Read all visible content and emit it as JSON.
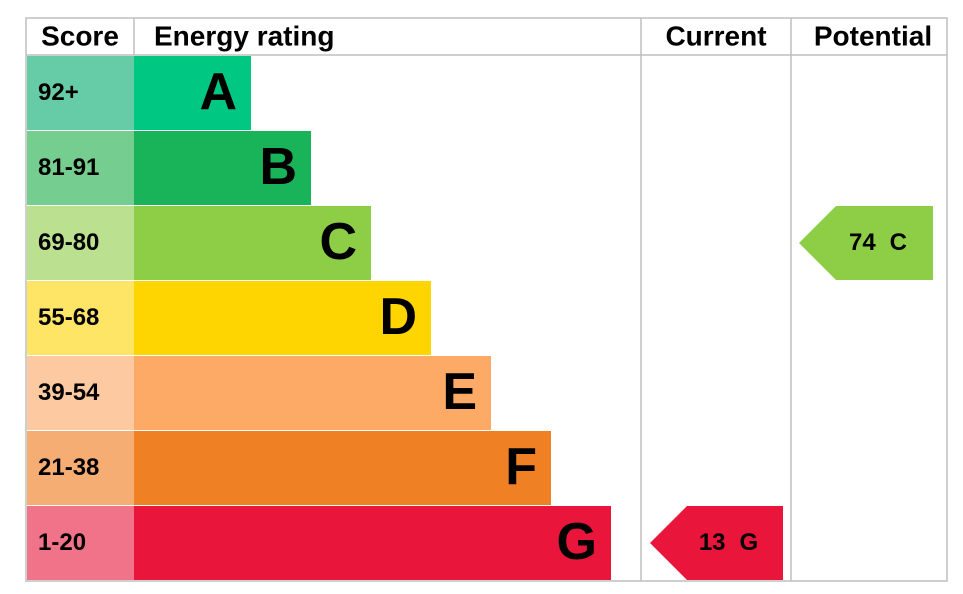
{
  "headers": {
    "score": "Score",
    "energy_rating": "Energy rating",
    "current": "Current",
    "potential": "Potential"
  },
  "bands": [
    {
      "score": "92+",
      "letter": "A",
      "color": "#00c781",
      "score_color": "#66cca8"
    },
    {
      "score": "81-91",
      "letter": "B",
      "color": "#19b459",
      "score_color": "#75cd8f"
    },
    {
      "score": "69-80",
      "letter": "C",
      "color": "#8dce46",
      "score_color": "#bbe08f"
    },
    {
      "score": "55-68",
      "letter": "D",
      "color": "#ffd500",
      "score_color": "#ffe566"
    },
    {
      "score": "39-54",
      "letter": "E",
      "color": "#fcaa65",
      "score_color": "#fdc9a0"
    },
    {
      "score": "21-38",
      "letter": "F",
      "color": "#ef8023",
      "score_color": "#f5ad74"
    },
    {
      "score": "1-20",
      "letter": "G",
      "color": "#e9153b",
      "score_color": "#f07389"
    }
  ],
  "current": {
    "score": 13,
    "letter": "G"
  },
  "potential": {
    "score": 74,
    "letter": "C"
  }
}
